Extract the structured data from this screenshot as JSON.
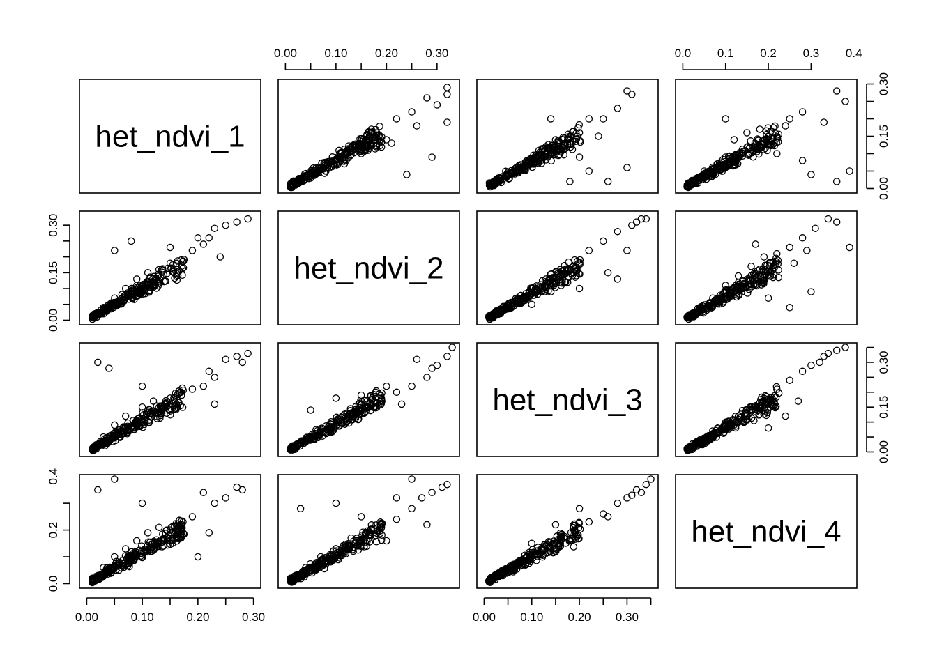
{
  "chart_data": {
    "type": "scatter",
    "subtype": "scatterplot-matrix",
    "variables": [
      "het_ndvi_1",
      "het_ndvi_2",
      "het_ndvi_3",
      "het_ndvi_4"
    ],
    "ranges": {
      "het_ndvi_1": [
        0.0,
        0.3
      ],
      "het_ndvi_2": [
        0.0,
        0.33
      ],
      "het_ndvi_3": [
        0.0,
        0.35
      ],
      "het_ndvi_4": [
        0.0,
        0.39
      ]
    },
    "ticks": {
      "het_ndvi_1": [
        "0.00",
        "0.10",
        "0.20",
        "0.30"
      ],
      "het_ndvi_2": [
        "0.00",
        "0.10",
        "0.20",
        "0.30"
      ],
      "het_ndvi_3": [
        "0.00",
        "0.10",
        "0.20",
        "0.30"
      ],
      "het_ndvi_4": [
        "0.0",
        "0.1",
        "0.2",
        "0.3",
        "0.4"
      ]
    },
    "y_ticks": {
      "het_ndvi_1": [
        "0.00",
        "0.15",
        "0.30"
      ],
      "het_ndvi_2": [
        "0.00",
        "0.15",
        "0.30"
      ],
      "het_ndvi_3": [
        "0.00",
        "0.15",
        "0.30"
      ],
      "het_ndvi_4": [
        "0.0",
        "0.2",
        "0.4"
      ]
    },
    "axes_placement": {
      "bottom": [
        "het_ndvi_1",
        "het_ndvi_3"
      ],
      "top": [
        "het_ndvi_2",
        "het_ndvi_4"
      ],
      "left": [
        "het_ndvi_2",
        "het_ndvi_4"
      ],
      "right": [
        "het_ndvi_1",
        "het_ndvi_3"
      ]
    },
    "marker": "open-circle",
    "grid": false,
    "legend": "none",
    "pairs": [
      {
        "x": "het_ndvi_2",
        "y": "het_ndvi_1",
        "points": [
          [
            0.02,
            0.01
          ],
          [
            0.05,
            0.03
          ],
          [
            0.08,
            0.05
          ],
          [
            0.1,
            0.07
          ],
          [
            0.12,
            0.08
          ],
          [
            0.15,
            0.1
          ],
          [
            0.18,
            0.12
          ],
          [
            0.2,
            0.14
          ],
          [
            0.22,
            0.2
          ],
          [
            0.25,
            0.22
          ],
          [
            0.28,
            0.26
          ],
          [
            0.32,
            0.29
          ],
          [
            0.32,
            0.27
          ],
          [
            0.3,
            0.24
          ],
          [
            0.32,
            0.19
          ],
          [
            0.29,
            0.09
          ],
          [
            0.24,
            0.04
          ],
          [
            0.26,
            0.18
          ],
          [
            0.21,
            0.13
          ],
          [
            0.17,
            0.17
          ]
        ]
      },
      {
        "x": "het_ndvi_3",
        "y": "het_ndvi_1",
        "points": [
          [
            0.02,
            0.01
          ],
          [
            0.05,
            0.04
          ],
          [
            0.08,
            0.06
          ],
          [
            0.1,
            0.08
          ],
          [
            0.13,
            0.12
          ],
          [
            0.15,
            0.14
          ],
          [
            0.18,
            0.13
          ],
          [
            0.2,
            0.09
          ],
          [
            0.22,
            0.05
          ],
          [
            0.25,
            0.2
          ],
          [
            0.28,
            0.23
          ],
          [
            0.3,
            0.28
          ],
          [
            0.31,
            0.27
          ],
          [
            0.3,
            0.06
          ],
          [
            0.26,
            0.02
          ],
          [
            0.22,
            0.2
          ],
          [
            0.18,
            0.02
          ],
          [
            0.14,
            0.2
          ],
          [
            0.24,
            0.15
          ],
          [
            0.2,
            0.16
          ]
        ]
      },
      {
        "x": "het_ndvi_4",
        "y": "het_ndvi_1",
        "points": [
          [
            0.02,
            0.01
          ],
          [
            0.05,
            0.05
          ],
          [
            0.08,
            0.07
          ],
          [
            0.1,
            0.09
          ],
          [
            0.12,
            0.14
          ],
          [
            0.15,
            0.16
          ],
          [
            0.18,
            0.17
          ],
          [
            0.2,
            0.15
          ],
          [
            0.22,
            0.1
          ],
          [
            0.25,
            0.2
          ],
          [
            0.28,
            0.22
          ],
          [
            0.3,
            0.04
          ],
          [
            0.33,
            0.19
          ],
          [
            0.36,
            0.28
          ],
          [
            0.38,
            0.25
          ],
          [
            0.36,
            0.02
          ],
          [
            0.39,
            0.05
          ],
          [
            0.28,
            0.08
          ],
          [
            0.24,
            0.18
          ],
          [
            0.1,
            0.2
          ]
        ]
      },
      {
        "x": "het_ndvi_1",
        "y": "het_ndvi_2",
        "points": [
          [
            0.01,
            0.01
          ],
          [
            0.03,
            0.04
          ],
          [
            0.05,
            0.07
          ],
          [
            0.07,
            0.1
          ],
          [
            0.09,
            0.13
          ],
          [
            0.11,
            0.15
          ],
          [
            0.13,
            0.16
          ],
          [
            0.15,
            0.18
          ],
          [
            0.17,
            0.19
          ],
          [
            0.19,
            0.22
          ],
          [
            0.21,
            0.24
          ],
          [
            0.22,
            0.26
          ],
          [
            0.23,
            0.29
          ],
          [
            0.25,
            0.3
          ],
          [
            0.27,
            0.31
          ],
          [
            0.29,
            0.32
          ],
          [
            0.24,
            0.2
          ],
          [
            0.05,
            0.22
          ],
          [
            0.08,
            0.25
          ],
          [
            0.15,
            0.23
          ],
          [
            0.2,
            0.26
          ]
        ]
      },
      {
        "x": "het_ndvi_3",
        "y": "het_ndvi_2",
        "points": [
          [
            0.01,
            0.01
          ],
          [
            0.04,
            0.04
          ],
          [
            0.07,
            0.07
          ],
          [
            0.1,
            0.1
          ],
          [
            0.13,
            0.13
          ],
          [
            0.16,
            0.16
          ],
          [
            0.19,
            0.19
          ],
          [
            0.22,
            0.22
          ],
          [
            0.25,
            0.25
          ],
          [
            0.28,
            0.28
          ],
          [
            0.31,
            0.3
          ],
          [
            0.33,
            0.32
          ],
          [
            0.3,
            0.22
          ],
          [
            0.28,
            0.13
          ],
          [
            0.26,
            0.15
          ],
          [
            0.2,
            0.1
          ],
          [
            0.1,
            0.05
          ],
          [
            0.14,
            0.09
          ],
          [
            0.32,
            0.31
          ],
          [
            0.34,
            0.32
          ]
        ]
      },
      {
        "x": "het_ndvi_4",
        "y": "het_ndvi_2",
        "points": [
          [
            0.01,
            0.01
          ],
          [
            0.04,
            0.04
          ],
          [
            0.07,
            0.07
          ],
          [
            0.1,
            0.11
          ],
          [
            0.13,
            0.14
          ],
          [
            0.16,
            0.17
          ],
          [
            0.19,
            0.2
          ],
          [
            0.22,
            0.21
          ],
          [
            0.25,
            0.23
          ],
          [
            0.28,
            0.26
          ],
          [
            0.31,
            0.29
          ],
          [
            0.34,
            0.32
          ],
          [
            0.36,
            0.31
          ],
          [
            0.39,
            0.23
          ],
          [
            0.3,
            0.09
          ],
          [
            0.25,
            0.04
          ],
          [
            0.2,
            0.07
          ],
          [
            0.17,
            0.24
          ],
          [
            0.26,
            0.18
          ],
          [
            0.29,
            0.22
          ]
        ]
      },
      {
        "x": "het_ndvi_1",
        "y": "het_ndvi_3",
        "points": [
          [
            0.01,
            0.01
          ],
          [
            0.03,
            0.05
          ],
          [
            0.05,
            0.09
          ],
          [
            0.07,
            0.12
          ],
          [
            0.1,
            0.15
          ],
          [
            0.12,
            0.17
          ],
          [
            0.15,
            0.18
          ],
          [
            0.17,
            0.2
          ],
          [
            0.19,
            0.21
          ],
          [
            0.21,
            0.22
          ],
          [
            0.23,
            0.25
          ],
          [
            0.25,
            0.31
          ],
          [
            0.27,
            0.32
          ],
          [
            0.29,
            0.33
          ],
          [
            0.28,
            0.3
          ],
          [
            0.22,
            0.27
          ],
          [
            0.1,
            0.22
          ],
          [
            0.04,
            0.28
          ],
          [
            0.02,
            0.3
          ],
          [
            0.23,
            0.16
          ]
        ]
      },
      {
        "x": "het_ndvi_2",
        "y": "het_ndvi_3",
        "points": [
          [
            0.01,
            0.01
          ],
          [
            0.04,
            0.04
          ],
          [
            0.07,
            0.07
          ],
          [
            0.1,
            0.1
          ],
          [
            0.13,
            0.13
          ],
          [
            0.16,
            0.15
          ],
          [
            0.19,
            0.18
          ],
          [
            0.22,
            0.2
          ],
          [
            0.25,
            0.22
          ],
          [
            0.28,
            0.25
          ],
          [
            0.3,
            0.29
          ],
          [
            0.32,
            0.32
          ],
          [
            0.33,
            0.35
          ],
          [
            0.26,
            0.31
          ],
          [
            0.2,
            0.22
          ],
          [
            0.1,
            0.18
          ],
          [
            0.05,
            0.14
          ],
          [
            0.15,
            0.19
          ],
          [
            0.23,
            0.16
          ],
          [
            0.29,
            0.28
          ]
        ]
      },
      {
        "x": "het_ndvi_4",
        "y": "het_ndvi_3",
        "points": [
          [
            0.01,
            0.01
          ],
          [
            0.04,
            0.04
          ],
          [
            0.07,
            0.07
          ],
          [
            0.1,
            0.09
          ],
          [
            0.13,
            0.12
          ],
          [
            0.16,
            0.15
          ],
          [
            0.19,
            0.18
          ],
          [
            0.22,
            0.21
          ],
          [
            0.25,
            0.24
          ],
          [
            0.28,
            0.27
          ],
          [
            0.3,
            0.29
          ],
          [
            0.33,
            0.32
          ],
          [
            0.36,
            0.34
          ],
          [
            0.38,
            0.35
          ],
          [
            0.27,
            0.17
          ],
          [
            0.24,
            0.12
          ],
          [
            0.2,
            0.08
          ],
          [
            0.15,
            0.14
          ],
          [
            0.34,
            0.33
          ],
          [
            0.32,
            0.3
          ]
        ]
      },
      {
        "x": "het_ndvi_1",
        "y": "het_ndvi_4",
        "points": [
          [
            0.01,
            0.02
          ],
          [
            0.03,
            0.06
          ],
          [
            0.05,
            0.1
          ],
          [
            0.07,
            0.13
          ],
          [
            0.09,
            0.16
          ],
          [
            0.11,
            0.19
          ],
          [
            0.13,
            0.21
          ],
          [
            0.15,
            0.2
          ],
          [
            0.17,
            0.22
          ],
          [
            0.19,
            0.25
          ],
          [
            0.21,
            0.34
          ],
          [
            0.23,
            0.3
          ],
          [
            0.25,
            0.32
          ],
          [
            0.27,
            0.36
          ],
          [
            0.28,
            0.35
          ],
          [
            0.05,
            0.39
          ],
          [
            0.02,
            0.35
          ],
          [
            0.1,
            0.3
          ],
          [
            0.22,
            0.19
          ],
          [
            0.2,
            0.1
          ]
        ]
      },
      {
        "x": "het_ndvi_2",
        "y": "het_ndvi_4",
        "points": [
          [
            0.01,
            0.02
          ],
          [
            0.04,
            0.06
          ],
          [
            0.07,
            0.1
          ],
          [
            0.1,
            0.13
          ],
          [
            0.13,
            0.17
          ],
          [
            0.16,
            0.19
          ],
          [
            0.19,
            0.21
          ],
          [
            0.22,
            0.24
          ],
          [
            0.25,
            0.28
          ],
          [
            0.27,
            0.32
          ],
          [
            0.29,
            0.34
          ],
          [
            0.31,
            0.36
          ],
          [
            0.32,
            0.37
          ],
          [
            0.25,
            0.39
          ],
          [
            0.22,
            0.32
          ],
          [
            0.1,
            0.3
          ],
          [
            0.03,
            0.28
          ],
          [
            0.15,
            0.25
          ],
          [
            0.28,
            0.22
          ],
          [
            0.2,
            0.16
          ]
        ]
      },
      {
        "x": "het_ndvi_3",
        "y": "het_ndvi_4",
        "points": [
          [
            0.01,
            0.01
          ],
          [
            0.04,
            0.05
          ],
          [
            0.07,
            0.08
          ],
          [
            0.1,
            0.11
          ],
          [
            0.13,
            0.14
          ],
          [
            0.16,
            0.17
          ],
          [
            0.19,
            0.2
          ],
          [
            0.22,
            0.23
          ],
          [
            0.25,
            0.26
          ],
          [
            0.28,
            0.3
          ],
          [
            0.3,
            0.32
          ],
          [
            0.32,
            0.35
          ],
          [
            0.34,
            0.37
          ],
          [
            0.35,
            0.39
          ],
          [
            0.2,
            0.28
          ],
          [
            0.15,
            0.22
          ],
          [
            0.26,
            0.25
          ],
          [
            0.1,
            0.15
          ],
          [
            0.31,
            0.33
          ],
          [
            0.33,
            0.34
          ]
        ]
      }
    ]
  }
}
